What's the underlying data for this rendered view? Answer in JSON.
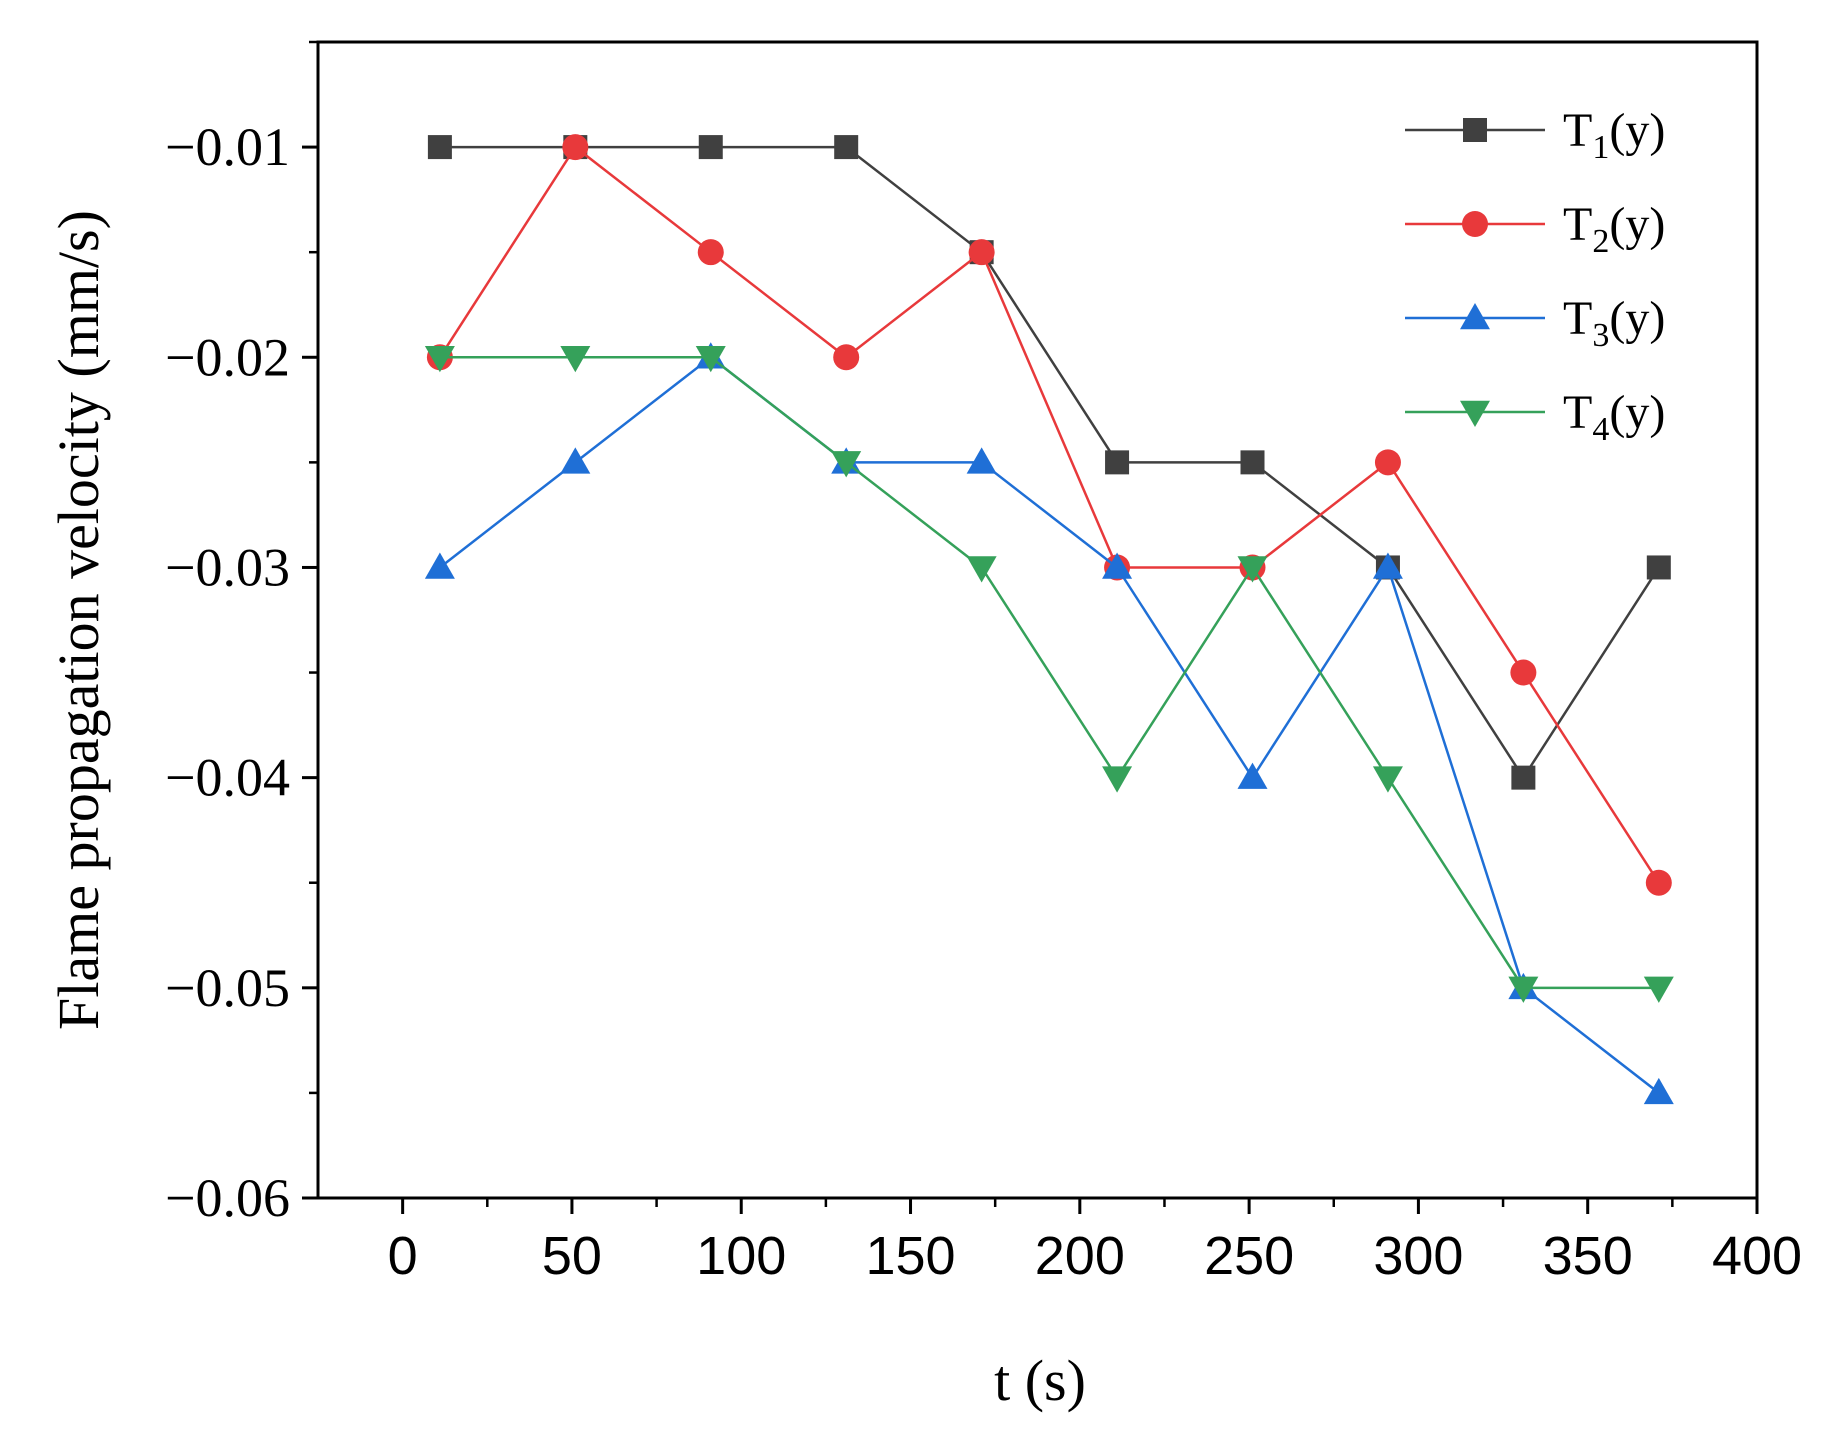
{
  "chart_data": {
    "type": "line",
    "title": "",
    "xlabel": "t (s)",
    "ylabel": "Flame propagation velocity (mm/s)",
    "xlim": [
      -25,
      400
    ],
    "ylim": [
      -0.06,
      -0.005
    ],
    "x_ticks": [
      0,
      50,
      100,
      150,
      200,
      250,
      300,
      350,
      400
    ],
    "x_tick_labels": [
      "0",
      "50",
      "100",
      "150",
      "200",
      "250",
      "300",
      "350",
      "400"
    ],
    "y_ticks": [
      -0.06,
      -0.05,
      -0.04,
      -0.03,
      -0.02,
      -0.01
    ],
    "y_tick_labels": [
      "−0.06",
      "−0.05",
      "−0.04",
      "−0.03",
      "−0.02",
      "−0.01"
    ],
    "grid": false,
    "legend_position": "top-right",
    "x": [
      11,
      51,
      91,
      131,
      171,
      211,
      251,
      291,
      331,
      371
    ],
    "series": [
      {
        "name": "T1(y)",
        "label_main": "T",
        "label_sub": "1",
        "label_tail": "(y)",
        "color": "#404040",
        "marker": "square",
        "values": [
          -0.01,
          -0.01,
          -0.01,
          -0.01,
          -0.015,
          -0.025,
          -0.025,
          -0.03,
          -0.04,
          -0.03
        ]
      },
      {
        "name": "T2(y)",
        "label_main": "T",
        "label_sub": "2",
        "label_tail": "(y)",
        "color": "#e8393b",
        "marker": "circle",
        "values": [
          -0.02,
          -0.01,
          -0.015,
          -0.02,
          -0.015,
          -0.03,
          -0.03,
          -0.025,
          -0.035,
          -0.045
        ]
      },
      {
        "name": "T3(y)",
        "label_main": "T",
        "label_sub": "3",
        "label_tail": "(y)",
        "color": "#1f6fd6",
        "marker": "triangle-up",
        "values": [
          -0.03,
          -0.025,
          -0.02,
          -0.025,
          -0.025,
          -0.03,
          -0.04,
          -0.03,
          -0.05,
          -0.055
        ]
      },
      {
        "name": "T4(y)",
        "label_main": "T",
        "label_sub": "4",
        "label_tail": "(y)",
        "color": "#35a15a",
        "marker": "triangle-down",
        "values": [
          -0.02,
          -0.02,
          -0.02,
          -0.025,
          -0.03,
          -0.04,
          -0.03,
          -0.04,
          -0.05,
          -0.05
        ]
      }
    ]
  }
}
